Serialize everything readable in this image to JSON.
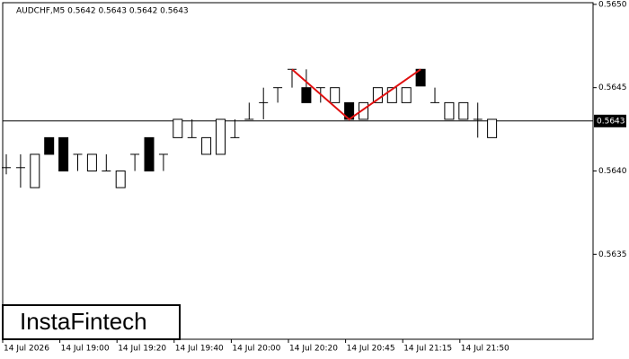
{
  "chart_data": {
    "type": "candlestick",
    "title": "AUDCHF,M5  0.5642 0.5643 0.5642 0.5643",
    "watermark": "InstaFintech",
    "categories": [
      "14 Jul 2026",
      null,
      null,
      null,
      "14 Jul 19:00",
      null,
      null,
      null,
      "14 Jul 19:20",
      null,
      null,
      null,
      "14 Jul 19:40",
      null,
      null,
      null,
      "14 Jul 20:00",
      null,
      null,
      null,
      "14 Jul 20:20",
      null,
      null,
      null,
      "14 Jul 20:45",
      null,
      null,
      null,
      "14 Jul 21:15",
      null,
      null,
      null,
      "14 Jul 21:50",
      null,
      null
    ],
    "open": [
      0.56402,
      0.56402,
      0.5639,
      0.5642,
      0.5642,
      0.5641,
      0.564,
      0.564,
      0.5639,
      0.5641,
      0.5642,
      0.5641,
      0.5642,
      0.5642,
      0.5641,
      0.5641,
      0.5642,
      0.56431,
      0.56441,
      0.5645,
      0.56461,
      0.5645,
      0.5645,
      0.56441,
      0.56441,
      0.56431,
      0.56441,
      0.56441,
      0.56441,
      0.56461,
      0.56441,
      0.56431,
      0.56431,
      0.56431,
      0.5642
    ],
    "high": [
      0.5641,
      0.5641,
      0.5641,
      0.5642,
      0.5642,
      0.5641,
      0.5641,
      0.5641,
      0.564,
      0.5641,
      0.5642,
      0.5641,
      0.56431,
      0.56431,
      0.5642,
      0.56431,
      0.56431,
      0.56441,
      0.5645,
      0.5645,
      0.56461,
      0.56461,
      0.5645,
      0.5645,
      0.56441,
      0.56441,
      0.5645,
      0.5645,
      0.5645,
      0.56461,
      0.5645,
      0.56441,
      0.56441,
      0.56441,
      0.56431
    ],
    "low": [
      0.56398,
      0.5639,
      0.5639,
      0.5641,
      0.564,
      0.564,
      0.564,
      0.564,
      0.5639,
      0.564,
      0.564,
      0.564,
      0.5642,
      0.5642,
      0.5641,
      0.5641,
      0.5642,
      0.56431,
      0.56431,
      0.56441,
      0.5645,
      0.56441,
      0.56441,
      0.56441,
      0.56431,
      0.56431,
      0.56441,
      0.56441,
      0.56441,
      0.56451,
      0.56441,
      0.56431,
      0.56431,
      0.5642,
      0.5642
    ],
    "close": [
      0.56402,
      0.56402,
      0.5641,
      0.5641,
      0.564,
      0.5641,
      0.5641,
      0.564,
      0.564,
      0.5641,
      0.564,
      0.5641,
      0.56431,
      0.5642,
      0.5642,
      0.56431,
      0.5642,
      0.56431,
      0.56441,
      0.5645,
      0.56461,
      0.56441,
      0.5645,
      0.5645,
      0.56431,
      0.56441,
      0.5645,
      0.5645,
      0.5645,
      0.56451,
      0.56441,
      0.56441,
      0.56441,
      0.56431,
      0.56431
    ],
    "up_color": "#ffffff",
    "down_color": "#000000",
    "last_price": 0.5643,
    "pattern": {
      "color": "#e01010",
      "x": [
        20,
        24,
        29
      ],
      "values": [
        0.56461,
        0.56431,
        0.56461
      ]
    },
    "ylim": [
      0.56299,
      0.56501
    ],
    "yticks": [
      0.5635,
      {
        "value": 0.564,
        "label": "0.5640"
      },
      0.5645,
      {
        "value": 0.565,
        "label": "0.5650"
      }
    ]
  }
}
